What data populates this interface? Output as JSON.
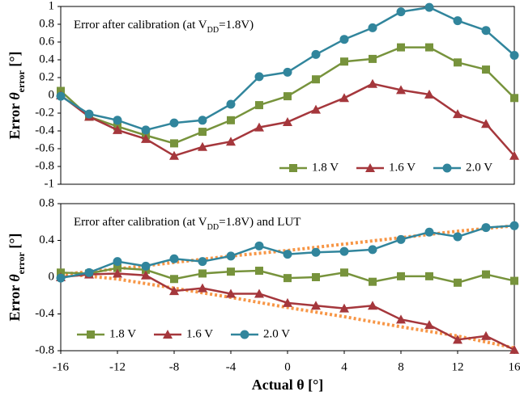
{
  "chart_data": [
    {
      "type": "line",
      "title_parts": [
        "Error after calibration (at V",
        "DD",
        "=1.8V)"
      ],
      "ylabel_parts": [
        "Error ",
        "θ",
        "error",
        " [°]"
      ],
      "x": [
        -16,
        -14,
        -12,
        -10,
        -8,
        -6,
        -4,
        -2,
        0,
        2,
        4,
        6,
        8,
        10,
        12,
        14,
        16
      ],
      "xlim": [
        -16,
        16
      ],
      "ylim": [
        -1,
        1
      ],
      "yticks": [
        -1,
        -0.8,
        -0.6,
        -0.4,
        -0.2,
        0,
        0.2,
        0.4,
        0.6,
        0.8,
        1
      ],
      "legend": "lower right",
      "series": [
        {
          "name": "1.8 V",
          "color": "#77933c",
          "marker": "square",
          "values": [
            0.05,
            -0.24,
            -0.35,
            -0.45,
            -0.54,
            -0.41,
            -0.28,
            -0.11,
            -0.01,
            0.18,
            0.38,
            0.41,
            0.54,
            0.54,
            0.37,
            0.29,
            -0.03
          ]
        },
        {
          "name": "1.6 V",
          "color": "#a5373c",
          "marker": "triangle",
          "values": [
            0.0,
            -0.24,
            -0.39,
            -0.49,
            -0.68,
            -0.58,
            -0.52,
            -0.36,
            -0.3,
            -0.16,
            -0.03,
            0.13,
            0.06,
            0.01,
            -0.21,
            -0.32,
            -0.68
          ]
        },
        {
          "name": "2.0 V",
          "color": "#31859c",
          "marker": "circle",
          "values": [
            -0.01,
            -0.21,
            -0.28,
            -0.39,
            -0.31,
            -0.28,
            -0.1,
            0.21,
            0.26,
            0.46,
            0.63,
            0.76,
            0.94,
            0.99,
            0.84,
            0.73,
            0.45
          ]
        }
      ]
    },
    {
      "type": "line",
      "title_parts": [
        "Error after calibration (at V",
        "DD",
        "=1.8V) and LUT"
      ],
      "ylabel_parts": [
        "Error ",
        "θ",
        "error",
        " [°]"
      ],
      "xlabel": "Actual θ [°]",
      "x": [
        -16,
        -14,
        -12,
        -10,
        -8,
        -6,
        -4,
        -2,
        0,
        2,
        4,
        6,
        8,
        10,
        12,
        14,
        16
      ],
      "xlim": [
        -16,
        16
      ],
      "xticks": [
        -16,
        -12,
        -8,
        -4,
        0,
        4,
        8,
        12,
        16
      ],
      "ylim": [
        -0.8,
        0.8
      ],
      "yticks": [
        -0.8,
        -0.4,
        0,
        0.4,
        0.8
      ],
      "legend": "lower left",
      "series": [
        {
          "name": "1.8 V",
          "color": "#77933c",
          "marker": "square",
          "values": [
            0.05,
            0.04,
            0.1,
            0.08,
            -0.02,
            0.04,
            0.06,
            0.07,
            -0.01,
            0.0,
            0.05,
            -0.05,
            0.01,
            0.01,
            -0.06,
            0.03,
            -0.04
          ]
        },
        {
          "name": "1.6 V",
          "color": "#a5373c",
          "marker": "triangle",
          "values": [
            0.0,
            0.03,
            0.04,
            0.02,
            -0.15,
            -0.12,
            -0.18,
            -0.18,
            -0.28,
            -0.31,
            -0.34,
            -0.31,
            -0.46,
            -0.52,
            -0.68,
            -0.64,
            -0.79
          ]
        },
        {
          "name": "2.0 V",
          "color": "#31859c",
          "marker": "circle",
          "values": [
            -0.01,
            0.05,
            0.17,
            0.12,
            0.2,
            0.17,
            0.23,
            0.34,
            0.25,
            0.27,
            0.28,
            0.3,
            0.41,
            0.49,
            0.44,
            0.54,
            0.56
          ]
        }
      ],
      "trendlines": [
        {
          "color": "#f79646",
          "x": [
            -16,
            -12,
            -8,
            -4,
            0,
            4,
            8,
            12,
            16
          ],
          "values": [
            0.03,
            0.09,
            0.16,
            0.23,
            0.29,
            0.36,
            0.43,
            0.5,
            0.56
          ]
        },
        {
          "color": "#f79646",
          "x": [
            -16,
            -12,
            -8,
            -4,
            0,
            4,
            8,
            12,
            16
          ],
          "values": [
            0.04,
            -0.02,
            -0.12,
            -0.22,
            -0.33,
            -0.43,
            -0.54,
            -0.64,
            -0.77
          ]
        }
      ]
    }
  ]
}
